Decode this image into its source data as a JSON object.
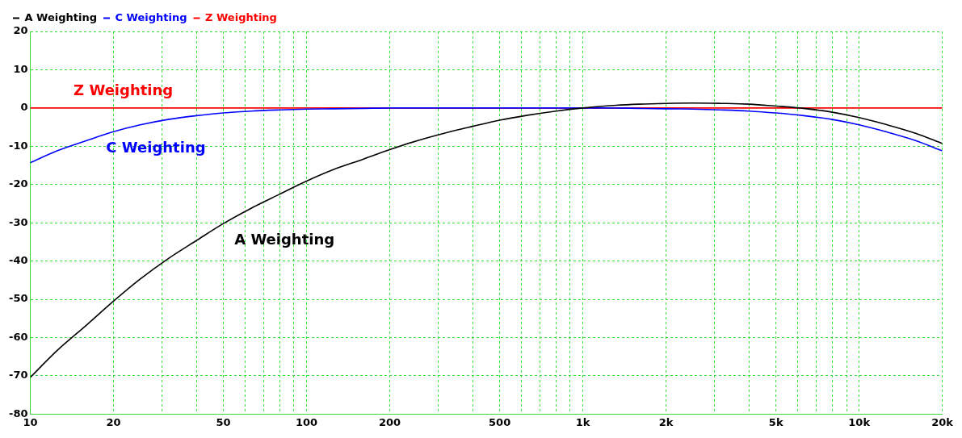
{
  "chart_data": {
    "type": "line",
    "x": [
      10,
      12.5,
      16,
      20,
      25,
      31.5,
      40,
      50,
      63,
      80,
      100,
      125,
      160,
      200,
      250,
      315,
      400,
      500,
      630,
      800,
      1000,
      1250,
      1600,
      2000,
      2500,
      3150,
      4000,
      5000,
      6300,
      8000,
      10000,
      12500,
      16000,
      20000
    ],
    "series": [
      {
        "name": "A Weighting",
        "color": "#000000",
        "values": [
          -70.4,
          -63.4,
          -56.7,
          -50.5,
          -44.7,
          -39.4,
          -34.6,
          -30.2,
          -26.2,
          -22.5,
          -19.1,
          -16.1,
          -13.4,
          -10.9,
          -8.6,
          -6.6,
          -4.8,
          -3.2,
          -1.9,
          -0.8,
          0,
          0.6,
          1.0,
          1.2,
          1.3,
          1.2,
          1.0,
          0.5,
          -0.1,
          -1.1,
          -2.5,
          -4.3,
          -6.6,
          -9.3
        ]
      },
      {
        "name": "C Weighting",
        "color": "#0000ff",
        "values": [
          -14.3,
          -11.2,
          -8.5,
          -6.2,
          -4.4,
          -3.0,
          -2.0,
          -1.3,
          -0.8,
          -0.5,
          -0.3,
          -0.2,
          -0.1,
          0,
          0,
          0,
          0,
          0,
          0,
          0,
          0,
          0,
          -0.1,
          -0.2,
          -0.3,
          -0.5,
          -0.8,
          -1.3,
          -2.0,
          -3.0,
          -4.4,
          -6.2,
          -8.5,
          -11.2
        ]
      },
      {
        "name": "Z Weighting",
        "color": "#ff0000",
        "values": [
          0,
          0,
          0,
          0,
          0,
          0,
          0,
          0,
          0,
          0,
          0,
          0,
          0,
          0,
          0,
          0,
          0,
          0,
          0,
          0,
          0,
          0,
          0,
          0,
          0,
          0,
          0,
          0,
          0,
          0,
          0,
          0,
          0,
          0
        ]
      }
    ],
    "log": "x",
    "xlim": [
      10,
      20000
    ],
    "xticks": [
      10,
      {
        "value": 20,
        "label": "20"
      },
      {
        "value": 30,
        "label": null
      },
      {
        "value": 40,
        "label": null
      },
      50,
      {
        "value": 60,
        "label": null
      },
      {
        "value": 70,
        "label": null
      },
      {
        "value": 80,
        "label": null
      },
      {
        "value": 90,
        "label": null
      },
      100,
      {
        "value": 200,
        "label": "200"
      },
      {
        "value": 300,
        "label": null
      },
      {
        "value": 400,
        "label": null
      },
      500,
      {
        "value": 600,
        "label": null
      },
      {
        "value": 700,
        "label": null
      },
      {
        "value": 800,
        "label": null
      },
      {
        "value": 900,
        "label": null
      },
      {
        "value": 1000,
        "label": "1k"
      },
      {
        "value": 2000,
        "label": "2k"
      },
      {
        "value": 3000,
        "label": null
      },
      {
        "value": 4000,
        "label": null
      },
      {
        "value": 5000,
        "label": "5k"
      },
      {
        "value": 6000,
        "label": null
      },
      {
        "value": 7000,
        "label": null
      },
      {
        "value": 8000,
        "label": null
      },
      {
        "value": 9000,
        "label": null
      },
      {
        "value": 10000,
        "label": "10k"
      },
      {
        "value": 20000,
        "label": "20k"
      }
    ],
    "ylim": [
      -80,
      20
    ],
    "yticks": [
      -80,
      -70,
      -60,
      -50,
      -40,
      -30,
      -20,
      -10,
      0,
      10,
      20
    ],
    "grid": true,
    "legend": "top left",
    "marker": "none",
    "line_style": "solid"
  }
}
